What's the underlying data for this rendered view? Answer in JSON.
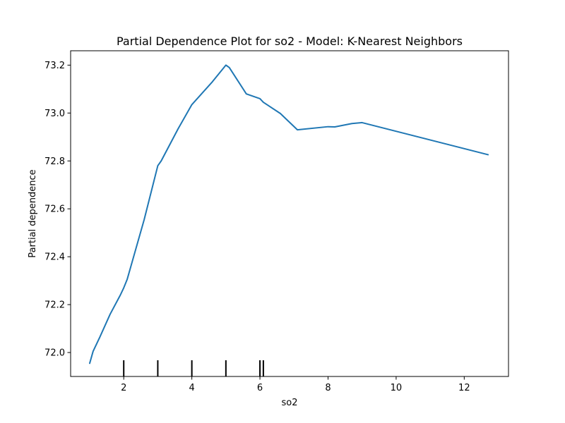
{
  "chart_data": {
    "type": "line",
    "title": "Partial Dependence Plot for so2 - Model: K-Nearest Neighbors",
    "xlabel": "so2",
    "ylabel": "Partial dependence",
    "xlim": [
      0.44,
      13.3
    ],
    "ylim": [
      71.9,
      73.26
    ],
    "x_ticks": [
      2,
      4,
      6,
      8,
      10,
      12
    ],
    "y_ticks": [
      72.0,
      72.2,
      72.4,
      72.6,
      72.8,
      73.0,
      73.2
    ],
    "x_tick_labels": [
      "2",
      "4",
      "6",
      "8",
      "10",
      "12"
    ],
    "y_tick_labels": [
      "72.0",
      "72.2",
      "72.4",
      "72.6",
      "72.8",
      "73.0",
      "73.2"
    ],
    "grid": false,
    "legend": "none",
    "series": [
      {
        "color": "#1f77b4",
        "points": [
          [
            1.0,
            71.955
          ],
          [
            1.1,
            72.005
          ],
          [
            1.3,
            72.065
          ],
          [
            1.6,
            72.16
          ],
          [
            1.9,
            72.24
          ],
          [
            2.0,
            72.27
          ],
          [
            2.1,
            72.305
          ],
          [
            2.6,
            72.555
          ],
          [
            3.0,
            72.78
          ],
          [
            3.1,
            72.8
          ],
          [
            3.6,
            72.935
          ],
          [
            4.0,
            73.035
          ],
          [
            4.6,
            73.13
          ],
          [
            5.0,
            73.2
          ],
          [
            5.1,
            73.19
          ],
          [
            5.6,
            73.08
          ],
          [
            6.0,
            73.06
          ],
          [
            6.1,
            73.045
          ],
          [
            6.6,
            72.998
          ],
          [
            7.1,
            72.93
          ],
          [
            8.0,
            72.943
          ],
          [
            8.2,
            72.942
          ],
          [
            8.7,
            72.956
          ],
          [
            9.0,
            72.96
          ],
          [
            12.7,
            72.826
          ]
        ]
      }
    ],
    "rug_x": [
      2.0,
      3.0,
      4.0,
      5.0,
      6.0,
      6.1
    ],
    "rug_color": "#000000"
  }
}
